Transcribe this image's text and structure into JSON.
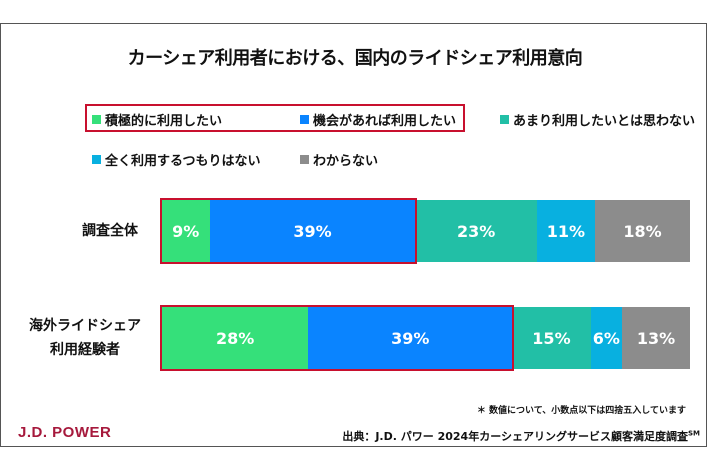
{
  "chart_data": {
    "type": "bar",
    "orientation": "horizontal-stacked-100",
    "title": "カーシェア利用者における、国内のライドシェア利用意向",
    "categories": [
      "調査全体",
      "海外ライドシェア 利用経験者"
    ],
    "category_lines": [
      [
        "調査全体"
      ],
      [
        "海外ライドシェア",
        "利用経験者"
      ]
    ],
    "series": [
      {
        "name": "積極的に利用したい",
        "color": "#35e07a",
        "values": [
          9,
          28
        ]
      },
      {
        "name": "機会があれば利用したい",
        "color": "#0a84ff",
        "values": [
          39,
          39
        ]
      },
      {
        "name": "あまり利用したいとは思わない",
        "color": "#22bfa6",
        "values": [
          23,
          15
        ]
      },
      {
        "name": "全く利用するつもりはない",
        "color": "#08b0e0",
        "values": [
          11,
          6
        ]
      },
      {
        "name": "わからない",
        "color": "#8c8c8c",
        "values": [
          18,
          13
        ]
      }
    ],
    "value_suffix": "%",
    "highlight_color": "#c8102e",
    "highlighted_series": [
      0,
      1
    ],
    "xlim": [
      0,
      100
    ],
    "legend": "top",
    "grid": false
  },
  "note": "＊ 数値について、小数点以下は四捨五入しています",
  "source": "出典：J.D. パワー 2024年カーシェアリングサービス顧客満足度調査",
  "source_mark": "SM",
  "logo": "J.D. POWER"
}
